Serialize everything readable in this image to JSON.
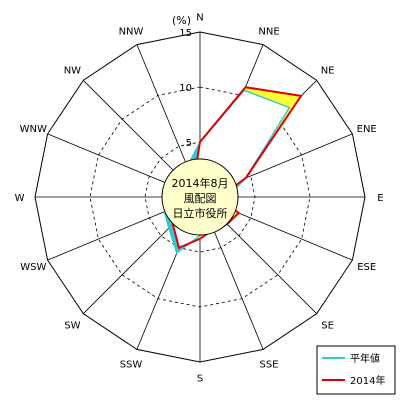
{
  "chart_data": {
    "type": "radar",
    "unit_label": "(%)",
    "directions": [
      "N",
      "NNE",
      "NE",
      "ENE",
      "E",
      "ESE",
      "SE",
      "SSE",
      "S",
      "SSW",
      "SW",
      "WSW",
      "W",
      "WNW",
      "NW",
      "NNW"
    ],
    "radial_ticks": [
      "0",
      "5",
      "10",
      "15"
    ],
    "rmax": 15,
    "center_text": [
      "2014年8月",
      "風配図",
      "日立市役所"
    ],
    "series": [
      {
        "name": "平年値",
        "color": "#33c7d6",
        "values": [
          5.0,
          10.5,
          11.5,
          4.5,
          2.5,
          2.5,
          3.0,
          3.0,
          3.5,
          5.5,
          4.0,
          3.5,
          3.0,
          3.0,
          3.0,
          3.0
        ]
      },
      {
        "name": "2014年",
        "color": "#e00000",
        "values": [
          5.0,
          10.8,
          13.0,
          4.5,
          1.8,
          3.8,
          3.5,
          3.2,
          3.8,
          5.0,
          3.5,
          2.8,
          2.8,
          2.8,
          2.0,
          1.5
        ]
      }
    ],
    "legend": {
      "position": "bottom-right"
    },
    "grid": true
  }
}
